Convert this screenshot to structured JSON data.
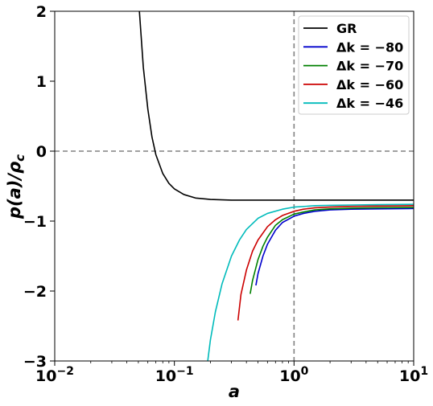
{
  "chart_data": {
    "type": "line",
    "title": "",
    "xlabel": "a",
    "ylabel": "p(a)/ρ_c",
    "xscale": "log",
    "xlim": [
      0.01,
      10
    ],
    "ylim": [
      -3,
      2
    ],
    "grid": false,
    "legend_position": "top-right",
    "x_tick_labels": [
      {
        "value": 0.01,
        "base": "10",
        "exp": "−2"
      },
      {
        "value": 0.1,
        "base": "10",
        "exp": "−1"
      },
      {
        "value": 1,
        "base": "10",
        "exp": "0"
      },
      {
        "value": 10,
        "base": "10",
        "exp": "1"
      }
    ],
    "y_tick_labels": [
      {
        "value": 2,
        "label": "2"
      },
      {
        "value": 1,
        "label": "1"
      },
      {
        "value": 0,
        "label": "0"
      },
      {
        "value": -1,
        "label": "−1"
      },
      {
        "value": -2,
        "label": "−2"
      },
      {
        "value": -3,
        "label": "−3"
      }
    ],
    "reference_lines": [
      {
        "orientation": "horizontal",
        "value": 0,
        "color": "#808080",
        "style": "dashed"
      },
      {
        "orientation": "vertical",
        "value": 1,
        "color": "#808080",
        "style": "dashed"
      }
    ],
    "series": [
      {
        "name": "GR",
        "color": "#000000",
        "points": [
          [
            0.051,
            2.0
          ],
          [
            0.055,
            1.2
          ],
          [
            0.06,
            0.6
          ],
          [
            0.065,
            0.2
          ],
          [
            0.07,
            -0.05
          ],
          [
            0.08,
            -0.32
          ],
          [
            0.09,
            -0.46
          ],
          [
            0.1,
            -0.54
          ],
          [
            0.12,
            -0.62
          ],
          [
            0.15,
            -0.67
          ],
          [
            0.2,
            -0.69
          ],
          [
            0.3,
            -0.7
          ],
          [
            0.5,
            -0.7
          ],
          [
            1,
            -0.7
          ],
          [
            2,
            -0.7
          ],
          [
            5,
            -0.7
          ],
          [
            10,
            -0.7
          ]
        ]
      },
      {
        "name": "Δk = −80",
        "color": "#0000cc",
        "points": [
          [
            0.48,
            -1.92
          ],
          [
            0.5,
            -1.75
          ],
          [
            0.55,
            -1.5
          ],
          [
            0.6,
            -1.33
          ],
          [
            0.7,
            -1.13
          ],
          [
            0.8,
            -1.02
          ],
          [
            1.0,
            -0.93
          ],
          [
            1.2,
            -0.89
          ],
          [
            1.5,
            -0.86
          ],
          [
            2,
            -0.84
          ],
          [
            3,
            -0.83
          ],
          [
            5,
            -0.825
          ],
          [
            10,
            -0.82
          ]
        ]
      },
      {
        "name": "Δk = −70",
        "color": "#008000",
        "points": [
          [
            0.43,
            -2.04
          ],
          [
            0.45,
            -1.85
          ],
          [
            0.5,
            -1.55
          ],
          [
            0.55,
            -1.36
          ],
          [
            0.6,
            -1.23
          ],
          [
            0.7,
            -1.06
          ],
          [
            0.8,
            -0.98
          ],
          [
            1.0,
            -0.9
          ],
          [
            1.2,
            -0.87
          ],
          [
            1.5,
            -0.84
          ],
          [
            2,
            -0.825
          ],
          [
            3,
            -0.815
          ],
          [
            5,
            -0.81
          ],
          [
            10,
            -0.805
          ]
        ]
      },
      {
        "name": "Δk = −60",
        "color": "#cc0000",
        "points": [
          [
            0.34,
            -2.42
          ],
          [
            0.36,
            -2.05
          ],
          [
            0.4,
            -1.7
          ],
          [
            0.45,
            -1.43
          ],
          [
            0.5,
            -1.27
          ],
          [
            0.6,
            -1.08
          ],
          [
            0.7,
            -0.98
          ],
          [
            0.8,
            -0.92
          ],
          [
            1.0,
            -0.86
          ],
          [
            1.2,
            -0.83
          ],
          [
            1.5,
            -0.81
          ],
          [
            2,
            -0.8
          ],
          [
            3,
            -0.79
          ],
          [
            5,
            -0.785
          ],
          [
            10,
            -0.78
          ]
        ]
      },
      {
        "name": "Δk = −46",
        "color": "#00bbbb",
        "points": [
          [
            0.19,
            -3.0
          ],
          [
            0.2,
            -2.7
          ],
          [
            0.22,
            -2.3
          ],
          [
            0.25,
            -1.9
          ],
          [
            0.3,
            -1.5
          ],
          [
            0.35,
            -1.27
          ],
          [
            0.4,
            -1.12
          ],
          [
            0.5,
            -0.96
          ],
          [
            0.6,
            -0.89
          ],
          [
            0.8,
            -0.83
          ],
          [
            1.0,
            -0.8
          ],
          [
            1.5,
            -0.78
          ],
          [
            2,
            -0.775
          ],
          [
            3,
            -0.77
          ],
          [
            5,
            -0.765
          ],
          [
            10,
            -0.76
          ]
        ]
      }
    ]
  }
}
